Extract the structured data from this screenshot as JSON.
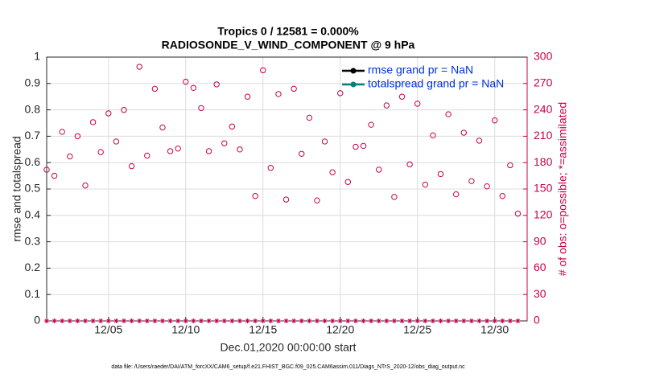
{
  "chart_data": {
    "type": "line",
    "title": "Tropics 0 / 12581 = 0.000%",
    "subtitle": "RADIOSONDE_V_WIND_COMPONENT @ 9 hPa",
    "x_label": "Dec.01,2020 00:00:00 start",
    "y_label": "rmse and totalspread",
    "y2_label": "# of obs: o=possible; *=assimilated",
    "footnote": "data file: /Users/raeder/DAI/ATM_forcXX/CAM6_setup/f.e21.FHIST_BGC.f09_025.CAM6assim.011/Diags_NTrS_2020-12/obs_diag_output.nc",
    "x": [
      1,
      1.5,
      2,
      2.5,
      3,
      3.5,
      4,
      4.5,
      5,
      5.5,
      6,
      6.5,
      7,
      7.5,
      8,
      8.5,
      9,
      9.5,
      10,
      10.5,
      11,
      11.5,
      12,
      12.5,
      13,
      13.5,
      14,
      14.5,
      15,
      15.5,
      16,
      16.5,
      17,
      17.5,
      18,
      18.5,
      19,
      19.5,
      20,
      20.5,
      21,
      21.5,
      22,
      22.5,
      23,
      23.5,
      24,
      24.5,
      25,
      25.5,
      26,
      26.5,
      27,
      27.5,
      28,
      28.5,
      29,
      29.5,
      30,
      30.5,
      31,
      31.5
    ],
    "xlim": [
      1,
      32.1
    ],
    "xticks": [
      {
        "value": 5,
        "label": "12/05"
      },
      {
        "value": 10,
        "label": "12/10"
      },
      {
        "value": 15,
        "label": "12/15"
      },
      {
        "value": 20,
        "label": "12/20"
      },
      {
        "value": 25,
        "label": "12/25"
      },
      {
        "value": 30,
        "label": "12/30"
      }
    ],
    "ylim": [
      0,
      1
    ],
    "yticks": [
      0,
      0.1,
      0.2,
      0.3,
      0.4,
      0.5,
      0.6,
      0.7,
      0.8,
      0.9,
      1
    ],
    "y2lim": [
      0,
      300
    ],
    "y2ticks": [
      0,
      30,
      60,
      90,
      120,
      150,
      180,
      210,
      240,
      270,
      300
    ],
    "y2_color": "#c8004a",
    "grid": true,
    "legend": "upper right",
    "series": [
      {
        "name": "rmse grand pr = NaN",
        "color": "#000000",
        "marker": "filled-circle",
        "values": [
          null,
          null,
          null,
          null,
          null,
          null,
          null,
          null,
          null,
          null,
          null,
          null,
          null,
          null,
          null,
          null,
          null,
          null,
          null,
          null,
          null,
          null,
          null,
          null,
          null,
          null,
          null,
          null,
          null,
          null,
          null,
          null,
          null,
          null,
          null,
          null,
          null,
          null,
          null,
          null,
          null,
          null,
          null,
          null,
          null,
          null,
          null,
          null,
          null,
          null,
          null,
          null,
          null,
          null,
          null,
          null,
          null,
          null,
          null,
          null,
          null,
          null
        ]
      },
      {
        "name": "totalspread grand pr = NaN",
        "color": "#008080",
        "marker": "filled-circle",
        "values": [
          null,
          null,
          null,
          null,
          null,
          null,
          null,
          null,
          null,
          null,
          null,
          null,
          null,
          null,
          null,
          null,
          null,
          null,
          null,
          null,
          null,
          null,
          null,
          null,
          null,
          null,
          null,
          null,
          null,
          null,
          null,
          null,
          null,
          null,
          null,
          null,
          null,
          null,
          null,
          null,
          null,
          null,
          null,
          null,
          null,
          null,
          null,
          null,
          null,
          null,
          null,
          null,
          null,
          null,
          null,
          null,
          null,
          null,
          null,
          null,
          null,
          null
        ]
      },
      {
        "axis": "y2",
        "color": "#c8004a",
        "marker": "open-circle",
        "values": [
          172,
          165,
          215,
          187,
          210,
          154,
          226,
          192,
          236,
          204,
          240,
          176,
          289,
          188,
          264,
          220,
          193,
          196,
          272,
          265,
          242,
          193,
          269,
          202,
          221,
          195,
          255,
          142,
          285,
          174,
          258,
          138,
          264,
          190,
          231,
          137,
          204,
          169,
          259,
          158,
          198,
          199,
          223,
          172,
          245,
          141,
          255,
          178,
          247,
          155,
          211,
          167,
          235,
          144,
          214,
          159,
          205,
          153,
          228,
          142,
          177,
          122
        ]
      },
      {
        "axis": "y2",
        "color": "#c8004a",
        "marker": "star",
        "values": [
          0,
          0,
          0,
          0,
          0,
          0,
          0,
          0,
          0,
          0,
          0,
          0,
          0,
          0,
          0,
          0,
          0,
          0,
          0,
          0,
          0,
          0,
          0,
          0,
          0,
          0,
          0,
          0,
          0,
          0,
          0,
          0,
          0,
          0,
          0,
          0,
          0,
          0,
          0,
          0,
          0,
          0,
          0,
          0,
          0,
          0,
          0,
          0,
          0,
          0,
          0,
          0,
          0,
          0,
          0,
          0,
          0,
          0,
          0,
          0,
          0,
          0
        ]
      }
    ]
  }
}
